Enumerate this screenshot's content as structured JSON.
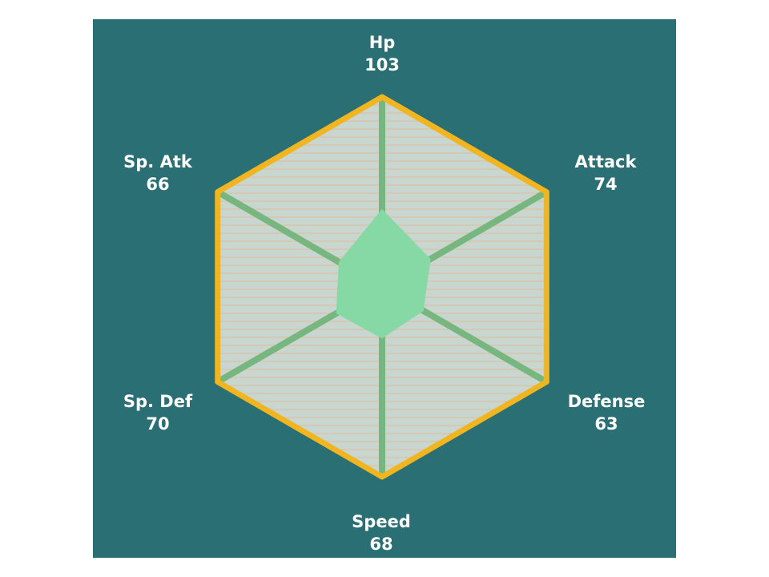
{
  "chart_data": {
    "type": "radar",
    "background_color": "#2a6f73",
    "plot_fill_color": "#c9d6d0",
    "stripe_color": "#d4c9b5",
    "outline_color": "#f1b520",
    "axis_color": "#77b77f",
    "data_fill_color": "#86d9a4",
    "label_color": "#ffffff",
    "axis_max": 255,
    "categories": [
      "Hp",
      "Attack",
      "Defense",
      "Speed",
      "Sp. Def",
      "Sp. Atk"
    ],
    "values": [
      103,
      74,
      63,
      68,
      70,
      66
    ],
    "value_labels": [
      "103",
      "74",
      "63",
      "68",
      "70",
      "66"
    ]
  }
}
